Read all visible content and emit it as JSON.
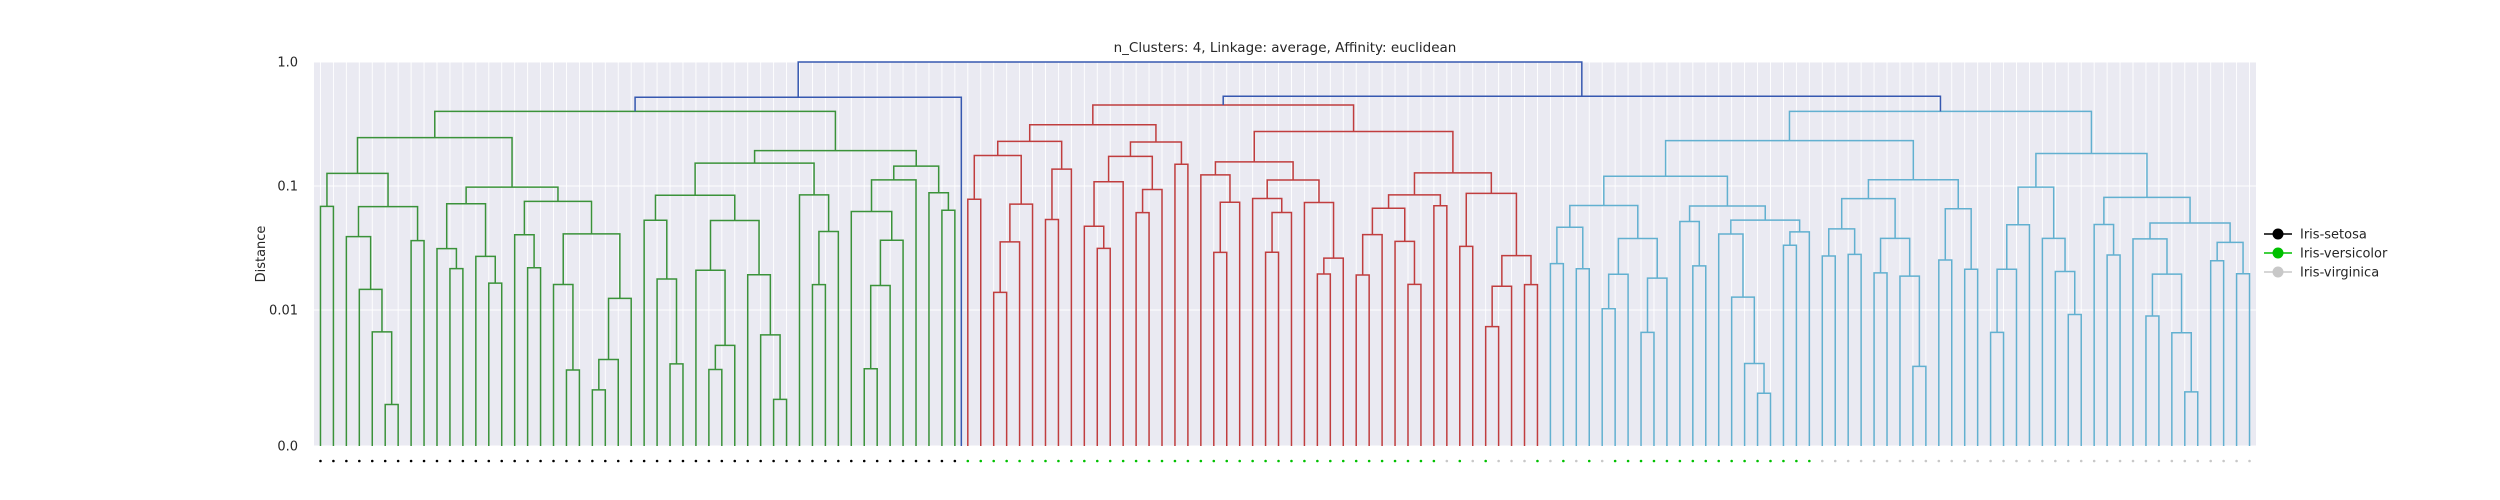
{
  "chart_data": {
    "type": "dendrogram",
    "title": "n_Clusters: 4, Linkage: average, Affinity: euclidean",
    "ylabel": "Distance",
    "y_scale": "symlog",
    "y_ticks": [
      "1.0",
      "0.1",
      "0.01",
      "0.0"
    ],
    "y_tick_values": [
      1.0,
      0.1,
      0.01,
      0.0
    ],
    "grid": true,
    "legend_position": "right",
    "legend": [
      {
        "name": "Iris-setosa",
        "color": "#000000"
      },
      {
        "name": "Iris-versicolor",
        "color": "#00c000"
      },
      {
        "name": "Iris-virginica",
        "color": "#c8c8c8"
      }
    ],
    "n_leaves": 150,
    "root_height": 1.0,
    "clusters": [
      {
        "color": "#3a923a",
        "size": 50,
        "label_class": 0,
        "top": 0.4,
        "parent_link": 0.52
      },
      {
        "color": "#c03d3e",
        "size": 45,
        "label_class": 1,
        "top": 0.45,
        "parent_link": 0.53
      },
      {
        "color": "#62b0d0",
        "size": 55,
        "label_class": 2,
        "top": 0.4,
        "parent_link": 0.53
      }
    ],
    "link_color": "#3658b0",
    "versicolor_positions_in_mid_cluster": [
      0,
      1,
      2,
      3,
      4,
      5,
      6,
      7,
      8,
      9,
      10,
      11,
      12,
      13,
      14,
      15,
      16,
      17,
      18,
      19,
      20,
      21,
      22,
      23,
      24,
      25,
      26,
      27,
      28,
      29,
      30,
      31,
      32,
      33,
      34,
      35,
      36,
      38,
      40,
      44,
      46,
      48,
      50,
      51,
      52,
      53,
      54,
      55,
      56,
      57,
      58,
      59,
      60,
      61,
      62,
      63,
      64,
      65,
      66
    ]
  }
}
